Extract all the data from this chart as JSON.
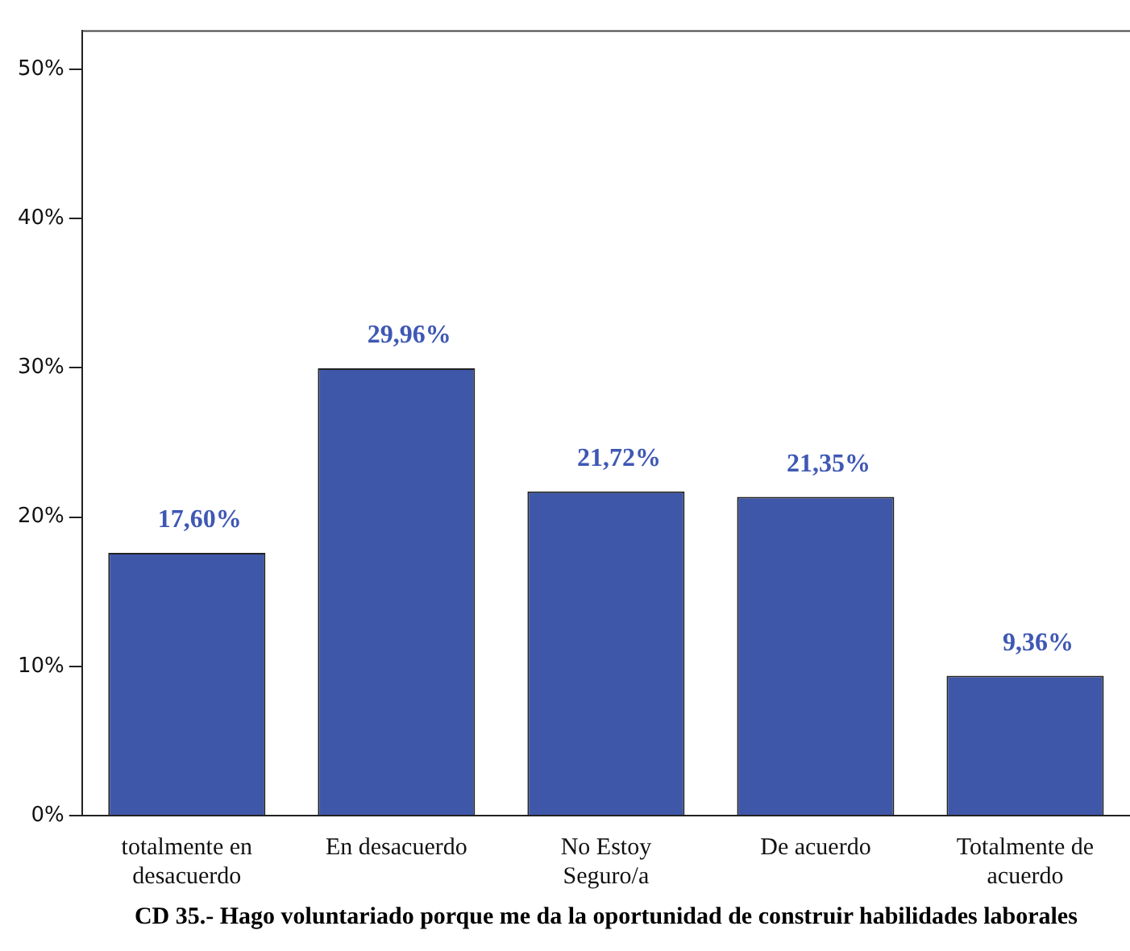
{
  "chart_data": {
    "type": "bar",
    "xlabel": "CD 35.- Hago voluntariado porque me da la oportunidad de construir habilidades laborales",
    "categories": [
      "totalmente en desacuerdo",
      "En desacuerdo",
      "No Estoy Seguro/a",
      "De acuerdo",
      "Totalmente de acuerdo"
    ],
    "values": [
      17.6,
      29.96,
      21.72,
      21.35,
      9.36
    ],
    "value_labels": [
      "17,60%",
      "29,96%",
      "21,72%",
      "21,35%",
      "9,36%"
    ],
    "color": "#3e57a9",
    "ylim": [
      0,
      52.6
    ],
    "yticks": [
      {
        "value": 0,
        "label": "0%"
      },
      {
        "value": 10,
        "label": "10%"
      },
      {
        "value": 20,
        "label": "20%"
      },
      {
        "value": 30,
        "label": "30%"
      },
      {
        "value": 40,
        "label": "40%"
      },
      {
        "value": 50,
        "label": "50%"
      }
    ],
    "grid": false,
    "legend": false
  }
}
